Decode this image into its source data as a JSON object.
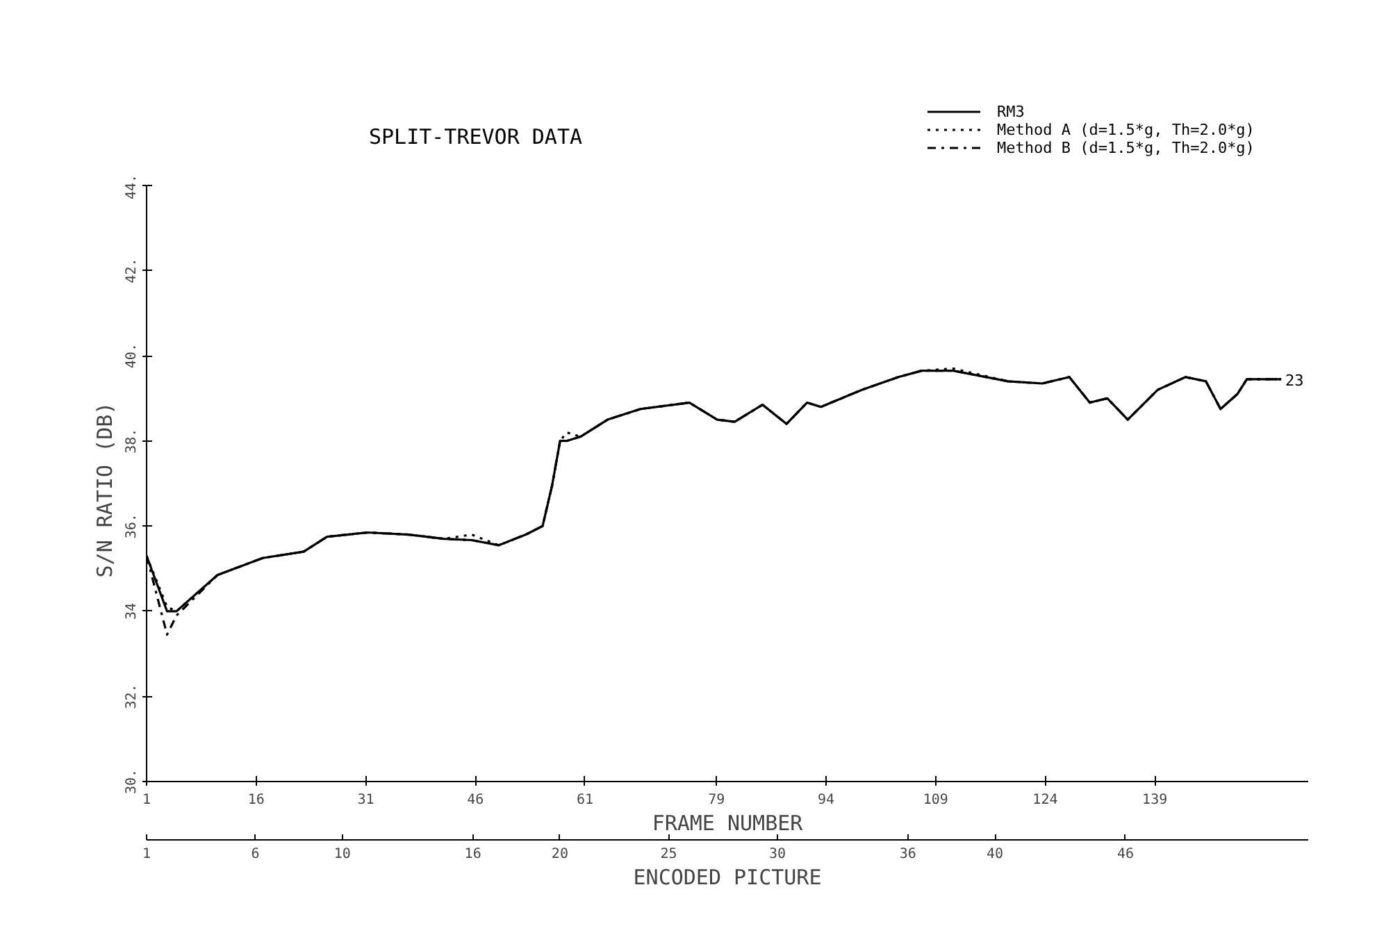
{
  "chart_data": {
    "type": "line",
    "title": "SPLIT-TREVOR DATA",
    "xlabel": "FRAME NUMBER",
    "ylabel": "S/N RATIO  (DB)",
    "x2label": "ENCODED PICTURE",
    "x": [
      1,
      3.8,
      5.1,
      10.7,
      16.9,
      22.5,
      25.7,
      31.3,
      36.9,
      41.7,
      45.5,
      49.2,
      52.9,
      55.2,
      56.5,
      57.6,
      58.5,
      60.4,
      64.1,
      68.6,
      75.3,
      79.1,
      81.5,
      85.3,
      88.6,
      91.4,
      93.3,
      98.9,
      103.9,
      107.1,
      111.4,
      118.9,
      123.6,
      127.3,
      130.1,
      132.5,
      135.3,
      139.4,
      143.2,
      146,
      148,
      150.3,
      151.6,
      156.3
    ],
    "series": [
      {
        "name": "RM3",
        "color": "#000000",
        "line_style": "solid",
        "values": [
          35.3,
          34.0,
          34.0,
          34.85,
          35.25,
          35.4,
          35.75,
          35.85,
          35.8,
          35.7,
          35.67,
          35.55,
          35.8,
          36.0,
          36.95,
          38.0,
          38.0,
          38.1,
          38.5,
          38.75,
          38.9,
          38.5,
          38.45,
          38.85,
          38.4,
          38.9,
          38.8,
          39.2,
          39.5,
          39.65,
          39.65,
          39.4,
          39.35,
          39.5,
          38.9,
          39.0,
          38.5,
          39.2,
          39.5,
          39.4,
          38.75,
          39.1,
          39.45,
          39.45
        ]
      },
      {
        "name": "Method A   (d=1.5*g, Th=2.0*g)",
        "color": "#000000",
        "line_style": "dotted",
        "values": [
          35.3,
          34.1,
          34.0,
          34.85,
          35.25,
          35.4,
          35.75,
          35.85,
          35.8,
          35.7,
          35.8,
          35.55,
          35.8,
          36.0,
          36.95,
          38.0,
          38.2,
          38.1,
          38.5,
          38.75,
          38.9,
          38.5,
          38.45,
          38.85,
          38.4,
          38.9,
          38.8,
          39.2,
          39.5,
          39.65,
          39.7,
          39.4,
          39.35,
          39.5,
          38.9,
          39.0,
          38.5,
          39.2,
          39.5,
          39.4,
          38.75,
          39.1,
          39.45,
          39.45
        ]
      },
      {
        "name": "Method B   (d=1.5*g, Th=2.0*g)",
        "color": "#000000",
        "line_style": "dashdot",
        "values": [
          35.3,
          33.45,
          33.9,
          34.85,
          35.25,
          35.4,
          35.75,
          35.85,
          35.8,
          35.7,
          35.67,
          35.55,
          35.8,
          36.0,
          36.95,
          38.0,
          38.0,
          38.1,
          38.5,
          38.75,
          38.9,
          38.5,
          38.45,
          38.85,
          38.4,
          38.9,
          38.8,
          39.2,
          39.5,
          39.65,
          39.65,
          39.4,
          39.35,
          39.5,
          38.9,
          39.0,
          38.5,
          39.2,
          39.5,
          39.4,
          38.75,
          39.1,
          39.45,
          39.45
        ]
      }
    ],
    "xlim": [
      1,
      160
    ],
    "ylim": [
      30,
      44
    ],
    "xticks": [
      1,
      16,
      31,
      46,
      61,
      79,
      94,
      109,
      124,
      139
    ],
    "yticks": [
      {
        "value": 30,
        "label": "30."
      },
      {
        "value": 32,
        "label": "32."
      },
      34,
      {
        "value": 36,
        "label": "36."
      },
      {
        "value": 38,
        "label": "38."
      },
      {
        "value": 40,
        "label": "40."
      },
      {
        "value": 42,
        "label": "42."
      },
      {
        "value": 44,
        "label": "44."
      }
    ],
    "x2lim": [
      1,
      54.4
    ],
    "x2ticks": [
      1,
      6,
      10,
      16,
      20,
      25,
      30,
      36,
      40,
      46
    ],
    "annotations": [
      "23"
    ],
    "legend": "top right",
    "grid": false
  }
}
